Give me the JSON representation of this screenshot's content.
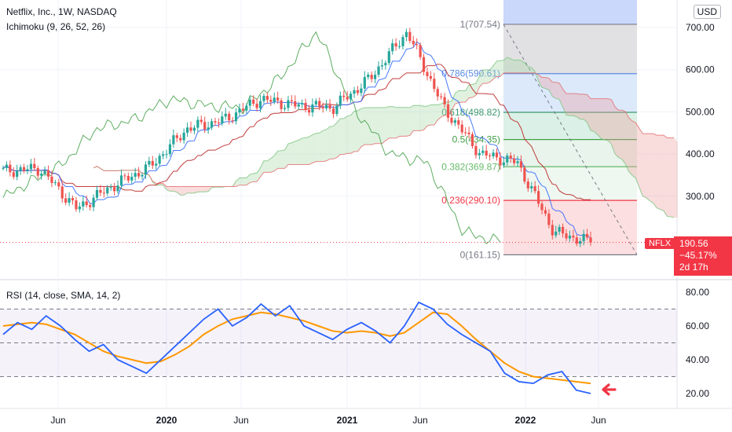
{
  "header": {
    "symbol_line": "Netflix, Inc., 1W, NASDAQ",
    "indicator_line": "Ichimoku (9, 26, 52, 26)",
    "currency": "USD"
  },
  "price_tag": {
    "ticker": "NFLX",
    "price": "190.56",
    "change": "−45.17%",
    "countdown": "2d 17h"
  },
  "rsi": {
    "label": "RSI (14, close, SMA, 14, 2)"
  },
  "colors": {
    "up": "#26a69a",
    "down": "#ef5350",
    "tenkan": "#2962ff",
    "kijun": "#b71c1c",
    "chikou": "#43a047",
    "senkou_green": "#a5d6a7",
    "senkou_red": "#ef9a9a",
    "rsi_line": "#2962ff",
    "rsi_ma": "#ff9800",
    "arrow": "#f23645"
  },
  "chart_data": [
    {
      "type": "candlestick",
      "title": "Netflix, Inc., 1W, NASDAQ",
      "ylim": [
        150,
        720
      ],
      "y_ticks": [
        "700.00",
        "600.00",
        "500.00",
        "400.00",
        "300.00"
      ],
      "x_ticks": [
        "Jun",
        "2020",
        "Jun",
        "2021",
        "Jun",
        "2022",
        "Jun"
      ],
      "series": [
        {
          "name": "close",
          "x": [
            "2019-03",
            "2019-06",
            "2019-09",
            "2019-12",
            "2020-03",
            "2020-06",
            "2020-09",
            "2020-12",
            "2021-03",
            "2021-06",
            "2021-09",
            "2021-11",
            "2022-01",
            "2022-02",
            "2022-03",
            "2022-04",
            "2022-05"
          ],
          "values": [
            360,
            365,
            270,
            325,
            370,
            460,
            480,
            530,
            515,
            510,
            580,
            690,
            510,
            400,
            380,
            215,
            190.56
          ]
        }
      ],
      "fibonacci": {
        "high": 707.54,
        "low": 161.15,
        "levels": [
          {
            "label": "1(707.54)",
            "value": 707.54
          },
          {
            "label": "0.786(590.61)",
            "value": 590.61
          },
          {
            "label": "0.618(498.82)",
            "value": 498.82
          },
          {
            "label": "0.5(434.35)",
            "value": 434.35
          },
          {
            "label": "0.382(369.87)",
            "value": 369.87
          },
          {
            "label": "0.236(290.10)",
            "value": 290.1
          },
          {
            "label": "0(161.15)",
            "value": 161.15
          }
        ]
      },
      "last_price": 190.56
    },
    {
      "type": "line",
      "title": "RSI (14, close, SMA, 14, 2)",
      "ylim": [
        15,
        82
      ],
      "y_ticks": [
        "80.00",
        "60.00",
        "40.00",
        "20.00"
      ],
      "bands": [
        70,
        50,
        30
      ],
      "series": [
        {
          "name": "RSI",
          "values": [
            55,
            62,
            58,
            66,
            60,
            52,
            45,
            49,
            40,
            36,
            32,
            40,
            48,
            56,
            64,
            70,
            60,
            65,
            73,
            66,
            72,
            60,
            56,
            52,
            58,
            62,
            57,
            50,
            60,
            74,
            70,
            61,
            55,
            50,
            45,
            32,
            27,
            26,
            31,
            33,
            22,
            20
          ]
        },
        {
          "name": "MA",
          "values": [
            60,
            61,
            62,
            61,
            58,
            55,
            50,
            45,
            42,
            40,
            38,
            39,
            43,
            48,
            55,
            60,
            64,
            66,
            68,
            67,
            65,
            63,
            60,
            57,
            56,
            57,
            56,
            54,
            56,
            62,
            68,
            67,
            60,
            52,
            45,
            38,
            33,
            30,
            29,
            28,
            27,
            26
          ]
        }
      ]
    }
  ]
}
